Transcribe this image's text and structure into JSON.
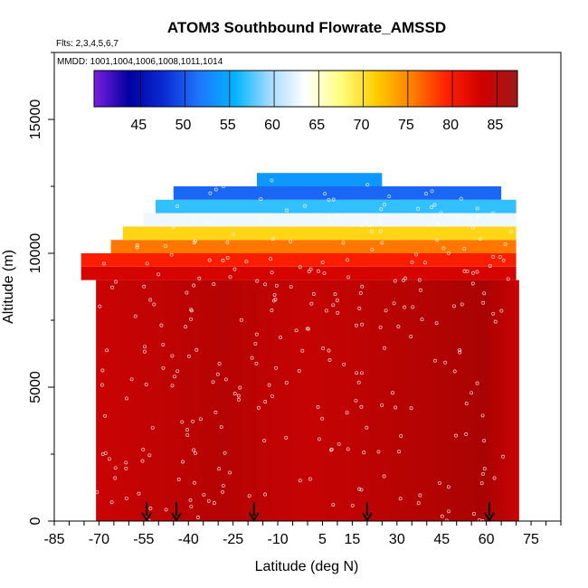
{
  "chart_data": {
    "type": "heatmap",
    "title": "ATOM3 Southbound Flowrate_AMSSD",
    "subtitle_flights": "Flts: 2,3,4,5,6,7",
    "subtitle_dates": "MMDD: 1001,1004,1006,1008,1011,1014",
    "xlabel": "Latitude (deg N)",
    "ylabel": "Altitude (m)",
    "xlim": [
      -85,
      85
    ],
    "ylim": [
      0,
      17500
    ],
    "x_ticks": [
      -85,
      -70,
      -55,
      -40,
      -25,
      -10,
      5,
      15,
      30,
      45,
      60,
      75
    ],
    "x_tick_labels": [
      "-85",
      "-70",
      "-55",
      "-40",
      "-25",
      "-10",
      "5",
      "15",
      "30",
      "45",
      "60",
      "75"
    ],
    "x_minor_step": 5,
    "y_ticks": [
      0,
      5000,
      10000,
      15000
    ],
    "y_tick_labels": [
      "0",
      "5000",
      "10000",
      "15000"
    ],
    "colorbar": {
      "min": 40,
      "max": 87.5,
      "ticks": [
        45,
        50,
        55,
        60,
        65,
        70,
        75,
        80,
        85
      ],
      "tick_labels": [
        "45",
        "50",
        "55",
        "60",
        "65",
        "70",
        "75",
        "80",
        "85"
      ],
      "colors": [
        "#7a1fe0",
        "#0000a0",
        "#0a2dd4",
        "#1e78ff",
        "#00b4ff",
        "#a8dcff",
        "#ffffff",
        "#ffff80",
        "#ffcc00",
        "#ff8000",
        "#ff2000",
        "#d00000",
        "#a01818"
      ]
    },
    "field_layers": [
      {
        "alt_min": 0,
        "alt_max": 9000,
        "lat_min": -71,
        "lat_max": 71,
        "value": 84
      },
      {
        "alt_min": 9000,
        "alt_max": 9500,
        "lat_min": -76,
        "lat_max": 70,
        "value": 83
      },
      {
        "alt_min": 9500,
        "alt_max": 10000,
        "lat_min": -76,
        "lat_max": 70,
        "value": 80
      },
      {
        "alt_min": 10000,
        "alt_max": 10500,
        "lat_min": -66,
        "lat_max": 70,
        "value": 76
      },
      {
        "alt_min": 10500,
        "alt_max": 11000,
        "lat_min": -62,
        "lat_max": 70,
        "value": 71
      },
      {
        "alt_min": 11000,
        "alt_max": 11500,
        "lat_min": -55,
        "lat_max": 70,
        "value": 63
      },
      {
        "alt_min": 11500,
        "alt_max": 12000,
        "lat_min": -51,
        "lat_max": 70,
        "value": 57
      },
      {
        "alt_min": 12000,
        "alt_max": 12500,
        "lat_min": -45,
        "lat_max": 65,
        "value": 51
      },
      {
        "alt_min": 12500,
        "alt_max": 13000,
        "lat_min": -17,
        "lat_max": 25,
        "value": 54
      }
    ],
    "profile_markers_lat": [
      -54,
      -44,
      -18,
      20,
      61
    ]
  }
}
